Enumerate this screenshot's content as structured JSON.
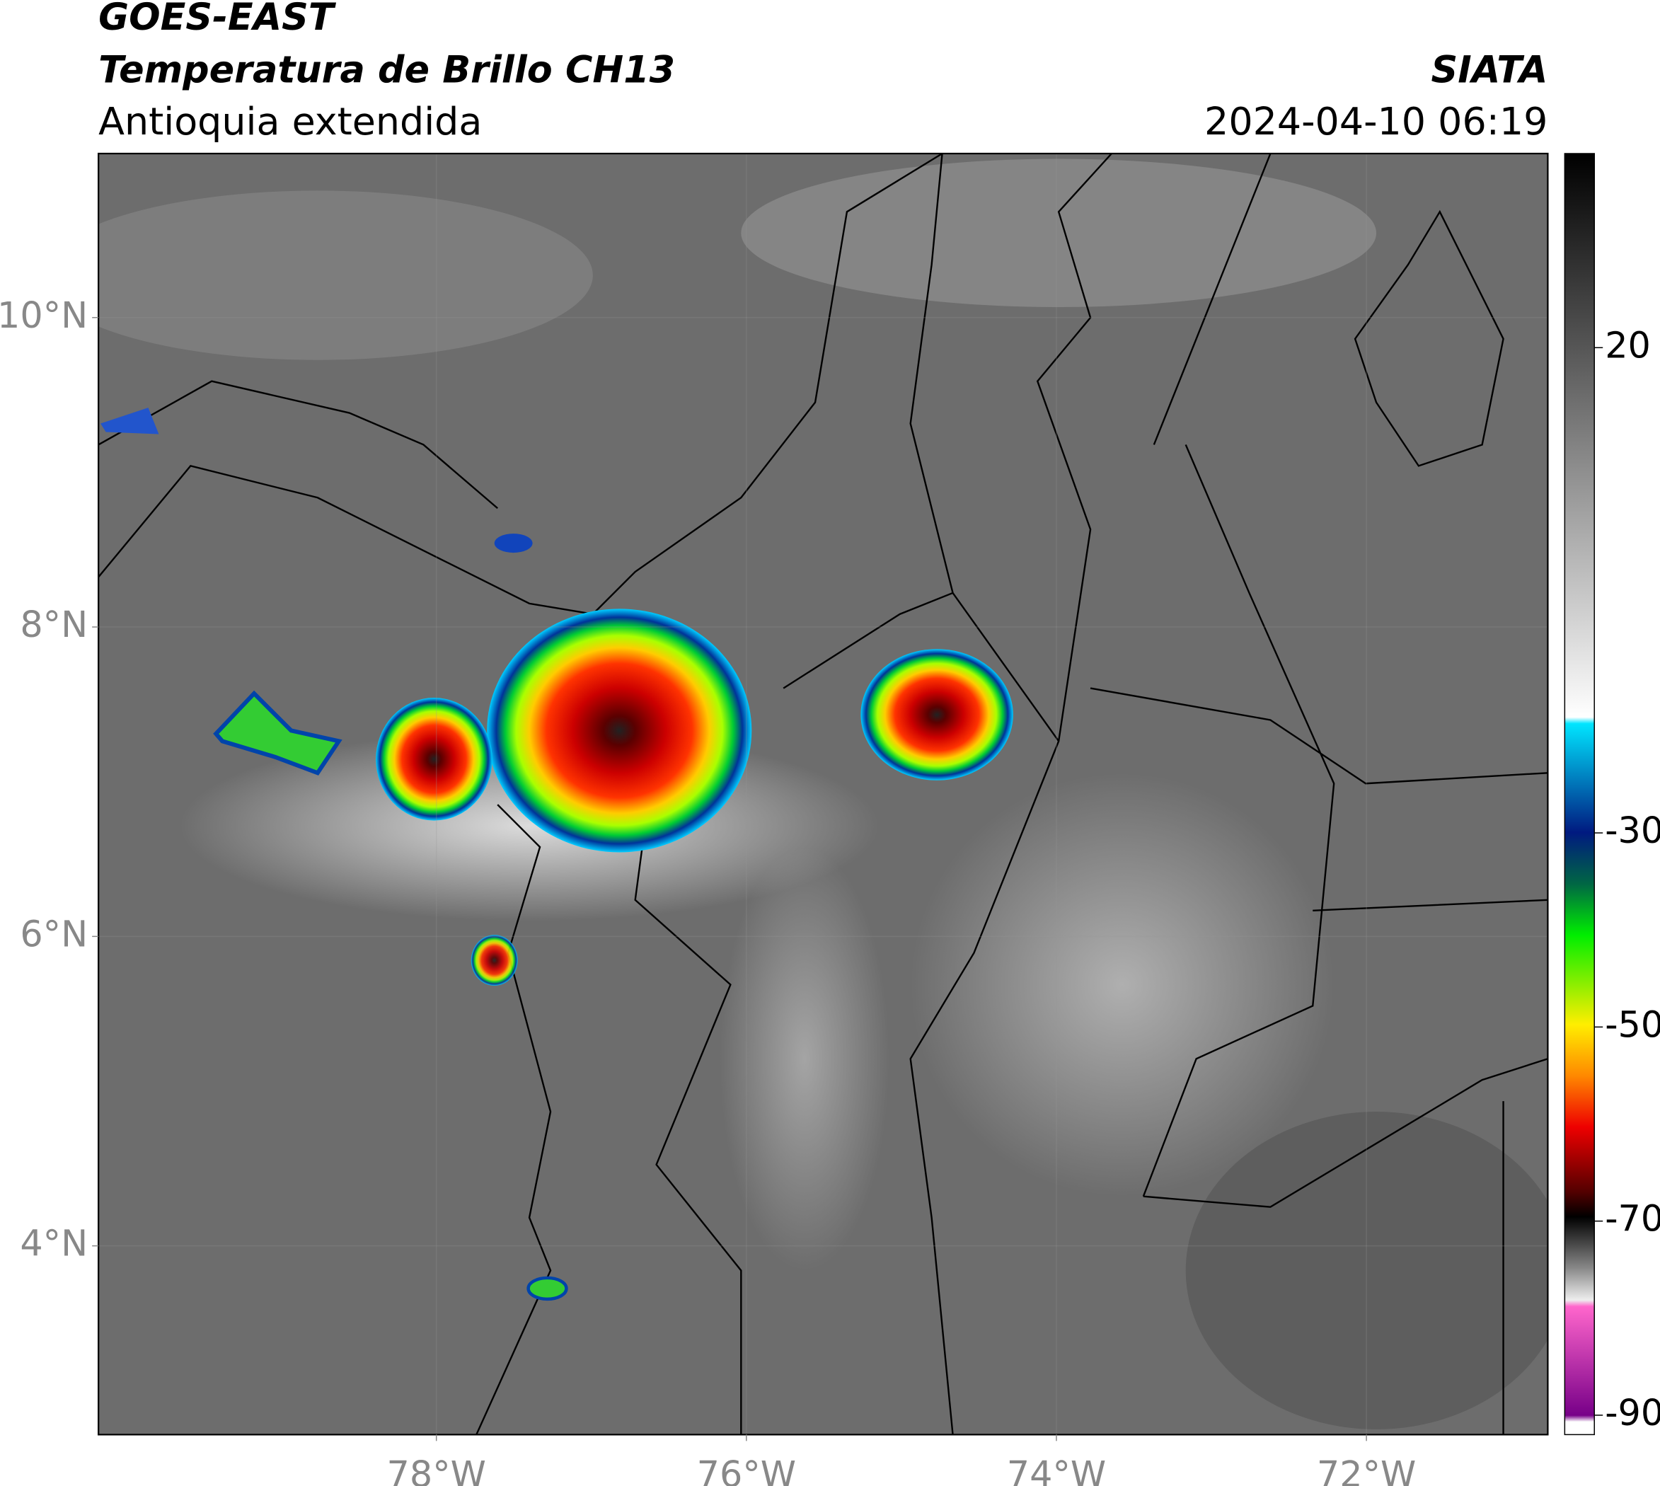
{
  "header": {
    "satellite": "GOES-EAST",
    "product": "Temperatura de Brillo CH13",
    "region": "Antioquia extendida",
    "source": "SIATA",
    "datetime": "2024-04-10 06:19"
  },
  "map": {
    "xlim": [
      -80.18,
      -70.83
    ],
    "ylim": [
      2.78,
      11.06
    ],
    "xticks": [
      {
        "value": -78,
        "label": "78°W"
      },
      {
        "value": -76,
        "label": "76°W"
      },
      {
        "value": -74,
        "label": "74°W"
      },
      {
        "value": -72,
        "label": "72°W"
      }
    ],
    "yticks": [
      {
        "value": 10,
        "label": "10°N"
      },
      {
        "value": 8,
        "label": "8°N"
      },
      {
        "value": 6,
        "label": "6°N"
      },
      {
        "value": 4,
        "label": "4°N"
      }
    ]
  },
  "colorbar": {
    "lim": [
      -92,
      40
    ],
    "ticks": [
      20,
      -30,
      -50,
      -70,
      -90
    ]
  }
}
